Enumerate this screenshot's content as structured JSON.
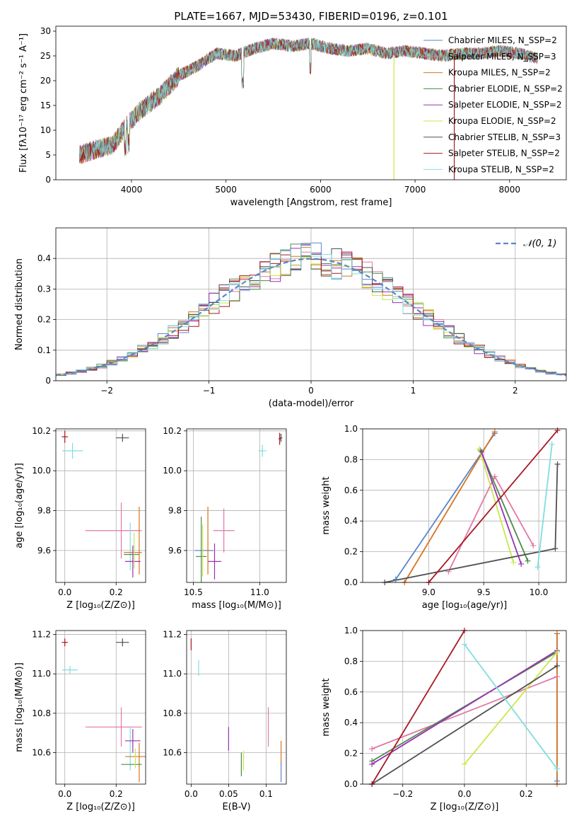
{
  "chart_data": [
    {
      "id": "spectrum",
      "type": "line",
      "title": "PLATE=1667, MJD=53430, FIBERID=0196, z=0.101",
      "xlabel": "wavelength [Angstrom, rest frame]",
      "ylabel": "Flux [fλ10⁻¹⁷ erg cm⁻² s⁻¹ A⁻¹]",
      "xlim": [
        3200,
        8600
      ],
      "ylim": [
        0,
        31
      ],
      "xticks": [
        4000,
        5000,
        6000,
        7000,
        8000
      ],
      "yticks": [
        0,
        5,
        10,
        15,
        20,
        25,
        30
      ],
      "grid": false,
      "legend_position": "top-right",
      "series": [
        {
          "name": "Chabrier MILES, N_SSP=2",
          "color": "#5b86c7"
        },
        {
          "name": "Salpeter MILES, N_SSP=3",
          "color": "#e377a5"
        },
        {
          "name": "Kroupa MILES, N_SSP=2",
          "color": "#d87420"
        },
        {
          "name": "Chabrier ELODIE, N_SSP=2",
          "color": "#4d8a4d"
        },
        {
          "name": "Salpeter ELODIE, N_SSP=2",
          "color": "#9a32b0"
        },
        {
          "name": "Kroupa ELODIE, N_SSP=2",
          "color": "#c8e84a"
        },
        {
          "name": "Chabrier STELIB, N_SSP=3",
          "color": "#505050"
        },
        {
          "name": "Salpeter STELIB, N_SSP=2",
          "color": "#a81820"
        },
        {
          "name": "Kroupa STELIB, N_SSP=2",
          "color": "#80dde0"
        }
      ],
      "continuum": [
        [
          3450,
          5
        ],
        [
          3600,
          6
        ],
        [
          3800,
          7
        ],
        [
          3950,
          11
        ],
        [
          4100,
          14
        ],
        [
          4300,
          17
        ],
        [
          4500,
          21
        ],
        [
          4700,
          23
        ],
        [
          4900,
          25.5
        ],
        [
          5100,
          25
        ],
        [
          5300,
          26.5
        ],
        [
          5500,
          27.5
        ],
        [
          5700,
          27
        ],
        [
          5900,
          27.5
        ],
        [
          6100,
          26.5
        ],
        [
          6300,
          26
        ],
        [
          6500,
          26.5
        ],
        [
          6700,
          25.5
        ],
        [
          6900,
          26
        ],
        [
          7100,
          25.5
        ],
        [
          7300,
          25
        ],
        [
          7500,
          25.5
        ],
        [
          7700,
          25.5
        ],
        [
          7900,
          26
        ],
        [
          8100,
          25.5
        ],
        [
          8300,
          24.5
        ]
      ]
    },
    {
      "id": "residuals",
      "type": "line",
      "xlabel": "(data-model)/error",
      "ylabel": "Normed distribution",
      "xlim": [
        -2.5,
        2.5
      ],
      "ylim": [
        0,
        0.5
      ],
      "xticks": [
        -2,
        -1,
        0,
        1,
        2
      ],
      "yticks": [
        0.0,
        0.1,
        0.2,
        0.3,
        0.4
      ],
      "grid": true,
      "legend_position": "top-right",
      "legend": "𝒩(0, 1)",
      "bin_width": 0.1,
      "series_colors": [
        "#5b86c7",
        "#e377a5",
        "#d87420",
        "#4d8a4d",
        "#9a32b0",
        "#c8e84a",
        "#505050",
        "#a81820",
        "#80dde0"
      ]
    },
    {
      "id": "age_vs_Z",
      "type": "scatter",
      "xlabel": "Z [log₁₀(Z/Z⊙)]",
      "ylabel": "age  [log₁₀(age/yr)]",
      "xlim": [
        -0.035,
        0.315
      ],
      "ylim": [
        9.44,
        10.21
      ],
      "xticks": [
        0.0,
        0.2
      ],
      "yticks": [
        9.6,
        9.8,
        10.0,
        10.2
      ],
      "points": [
        {
          "x": 0.0,
          "y": 10.17,
          "xerr": 0.012,
          "yerr": 0.03,
          "color": "#a81820"
        },
        {
          "x": 0.03,
          "y": 10.1,
          "xerr": 0.04,
          "yerr": 0.04,
          "color": "#80dde0"
        },
        {
          "x": 0.225,
          "y": 10.165,
          "xerr": 0.025,
          "yerr": 0.02,
          "color": "#505050"
        },
        {
          "x": 0.19,
          "y": 9.7,
          "xerr": 0.11,
          "yerr": 0.0,
          "color": "#e377a5"
        },
        {
          "x": 0.22,
          "y": 9.7,
          "xerr": 0.0,
          "yerr": 0.14,
          "color": "#e377a5"
        },
        {
          "x": 0.255,
          "y": 9.62,
          "xerr": 0.0,
          "yerr": 0.12,
          "color": "#80dde0"
        },
        {
          "x": 0.265,
          "y": 9.59,
          "xerr": 0.035,
          "yerr": 0.0,
          "color": "#d87420"
        },
        {
          "x": 0.29,
          "y": 9.65,
          "xerr": 0.0,
          "yerr": 0.17,
          "color": "#d87420"
        },
        {
          "x": 0.265,
          "y": 9.545,
          "xerr": 0.03,
          "yerr": 0.08,
          "color": "#9a32b0"
        },
        {
          "x": 0.26,
          "y": 9.58,
          "xerr": 0.03,
          "yerr": 0.0,
          "color": "#4d8a4d"
        },
        {
          "x": 0.27,
          "y": 9.6,
          "xerr": 0.0,
          "yerr": 0.09,
          "color": "#c8e84a"
        }
      ]
    },
    {
      "id": "age_vs_mass",
      "type": "scatter",
      "xlabel": "mass [log₁₀(M/M⊙)]",
      "ylabel": "",
      "xlim": [
        10.45,
        11.2
      ],
      "ylim": [
        9.44,
        10.21
      ],
      "xticks": [
        10.5,
        11.0
      ],
      "yticks": [
        9.6,
        9.8,
        10.0,
        10.2
      ],
      "points": [
        {
          "x": 11.15,
          "y": 10.16,
          "xerr": 0.01,
          "yerr": 0.03,
          "color": "#a81820"
        },
        {
          "x": 11.02,
          "y": 10.1,
          "xerr": 0.03,
          "yerr": 0.03,
          "color": "#80dde0"
        },
        {
          "x": 11.16,
          "y": 10.165,
          "xerr": 0.01,
          "yerr": 0.02,
          "color": "#505050"
        },
        {
          "x": 10.73,
          "y": 9.7,
          "xerr": 0.08,
          "yerr": 0.11,
          "color": "#e377a5"
        },
        {
          "x": 10.58,
          "y": 9.6,
          "xerr": 0.07,
          "yerr": 0.0,
          "color": "#5b86c7"
        },
        {
          "x": 10.61,
          "y": 9.65,
          "xerr": 0.0,
          "yerr": 0.17,
          "color": "#d87420"
        },
        {
          "x": 10.66,
          "y": 9.545,
          "xerr": 0.05,
          "yerr": 0.09,
          "color": "#9a32b0"
        },
        {
          "x": 10.56,
          "y": 9.57,
          "xerr": 0.04,
          "yerr": 0.2,
          "color": "#4d8a4d"
        },
        {
          "x": 10.57,
          "y": 9.6,
          "xerr": 0.0,
          "yerr": 0.13,
          "color": "#c8e84a"
        }
      ]
    },
    {
      "id": "weight_vs_age",
      "type": "line",
      "xlabel": "age  [log₁₀(age/yr)]",
      "ylabel": "mass weight",
      "xlim": [
        8.4,
        10.25
      ],
      "ylim": [
        0.0,
        1.0
      ],
      "xticks": [
        9.0,
        9.5,
        10.0
      ],
      "yticks": [
        0.0,
        0.2,
        0.4,
        0.6,
        0.8,
        1.0
      ],
      "grid": true,
      "series": [
        {
          "color": "#5b86c7",
          "points": [
            [
              8.7,
              0.02
            ],
            [
              9.6,
              0.97
            ]
          ]
        },
        {
          "color": "#e377a5",
          "points": [
            [
              9.18,
              0.07
            ],
            [
              9.6,
              0.69
            ],
            [
              9.95,
              0.24
            ]
          ]
        },
        {
          "color": "#d87420",
          "points": [
            [
              8.78,
              0.0
            ],
            [
              9.6,
              0.98
            ]
          ]
        },
        {
          "color": "#4d8a4d",
          "points": [
            [
              9.47,
              0.86
            ],
            [
              9.9,
              0.14
            ]
          ]
        },
        {
          "color": "#9a32b0",
          "points": [
            [
              9.48,
              0.85
            ],
            [
              9.84,
              0.12
            ]
          ]
        },
        {
          "color": "#c8e84a",
          "points": [
            [
              9.46,
              0.87
            ],
            [
              9.77,
              0.13
            ]
          ]
        },
        {
          "color": "#505050",
          "points": [
            [
              8.6,
              0.0
            ],
            [
              10.15,
              0.22
            ],
            [
              10.17,
              0.77
            ]
          ]
        },
        {
          "color": "#a81820",
          "points": [
            [
              9.0,
              0.0
            ],
            [
              10.17,
              0.99
            ]
          ]
        },
        {
          "color": "#80dde0",
          "points": [
            [
              9.99,
              0.1
            ],
            [
              10.12,
              0.9
            ]
          ]
        }
      ]
    },
    {
      "id": "mass_vs_Z",
      "type": "scatter",
      "xlabel": "Z [log₁₀(Z/Z⊙)]",
      "ylabel": "mass [log₁₀(M/M⊙)]",
      "xlim": [
        -0.035,
        0.315
      ],
      "ylim": [
        10.44,
        11.22
      ],
      "xticks": [
        0.0,
        0.2
      ],
      "yticks": [
        10.6,
        10.8,
        11.0,
        11.2
      ],
      "points": [
        {
          "x": 0.0,
          "y": 11.16,
          "xerr": 0.012,
          "yerr": 0.02,
          "color": "#a81820"
        },
        {
          "x": 0.02,
          "y": 11.02,
          "xerr": 0.03,
          "yerr": 0.02,
          "color": "#80dde0"
        },
        {
          "x": 0.225,
          "y": 11.16,
          "xerr": 0.025,
          "yerr": 0.02,
          "color": "#505050"
        },
        {
          "x": 0.19,
          "y": 10.73,
          "xerr": 0.11,
          "yerr": 0.0,
          "color": "#e377a5"
        },
        {
          "x": 0.22,
          "y": 10.73,
          "xerr": 0.0,
          "yerr": 0.1,
          "color": "#e377a5"
        },
        {
          "x": 0.255,
          "y": 10.62,
          "xerr": 0.0,
          "yerr": 0.11,
          "color": "#80dde0"
        },
        {
          "x": 0.275,
          "y": 10.58,
          "xerr": 0.04,
          "yerr": 0.0,
          "color": "#d87420"
        },
        {
          "x": 0.29,
          "y": 10.55,
          "xerr": 0.0,
          "yerr": 0.1,
          "color": "#d87420"
        },
        {
          "x": 0.265,
          "y": 10.66,
          "xerr": 0.03,
          "yerr": 0.06,
          "color": "#9a32b0"
        },
        {
          "x": 0.26,
          "y": 10.54,
          "xerr": 0.04,
          "yerr": 0.0,
          "color": "#4d8a4d"
        },
        {
          "x": 0.275,
          "y": 10.57,
          "xerr": 0.0,
          "yerr": 0.05,
          "color": "#c8e84a"
        }
      ]
    },
    {
      "id": "mass_vs_ebv",
      "type": "scatter",
      "xlabel": "E(B-V)",
      "ylabel": "",
      "xlim": [
        -0.006,
        0.127
      ],
      "ylim": [
        10.44,
        11.22
      ],
      "xticks": [
        0.0,
        0.05,
        0.1
      ],
      "yticks": [
        10.6,
        10.8,
        11.0,
        11.2
      ],
      "points": [
        {
          "x": 0.0,
          "y": 11.15,
          "xerr": 0.0,
          "yerr": 0.03,
          "color": "#a81820"
        },
        {
          "x": 0.01,
          "y": 11.03,
          "xerr": 0.0,
          "yerr": 0.04,
          "color": "#80dde0"
        },
        {
          "x": 0.05,
          "y": 10.67,
          "xerr": 0.0,
          "yerr": 0.06,
          "color": "#9a32b0"
        },
        {
          "x": 0.067,
          "y": 10.54,
          "xerr": 0.0,
          "yerr": 0.06,
          "color": "#4d8a4d"
        },
        {
          "x": 0.07,
          "y": 10.56,
          "xerr": 0.0,
          "yerr": 0.05,
          "color": "#c8e84a"
        },
        {
          "x": 0.103,
          "y": 10.73,
          "xerr": 0.0,
          "yerr": 0.1,
          "color": "#e377a5"
        },
        {
          "x": 0.12,
          "y": 10.6,
          "xerr": 0.0,
          "yerr": 0.06,
          "color": "#d87420"
        },
        {
          "x": 0.12,
          "y": 10.5,
          "xerr": 0.0,
          "yerr": 0.05,
          "color": "#5b86c7"
        }
      ]
    },
    {
      "id": "weight_vs_Z",
      "type": "line",
      "xlabel": "Z [log₁₀(Z/Z⊙)]",
      "ylabel": "mass weight",
      "xlim": [
        -0.33,
        0.33
      ],
      "ylim": [
        0.0,
        1.0
      ],
      "xticks": [
        -0.2,
        0.0,
        0.2
      ],
      "yticks": [
        0.0,
        0.2,
        0.4,
        0.6,
        0.8,
        1.0
      ],
      "grid": true,
      "series": [
        {
          "color": "#5b86c7",
          "points": [
            [
              0.3,
              0.02
            ],
            [
              0.3,
              0.98
            ]
          ]
        },
        {
          "color": "#e377a5",
          "points": [
            [
              -0.3,
              0.23
            ],
            [
              0.3,
              0.7
            ]
          ]
        },
        {
          "color": "#d87420",
          "points": [
            [
              0.3,
              0.0
            ],
            [
              0.3,
              0.98
            ]
          ]
        },
        {
          "color": "#4d8a4d",
          "points": [
            [
              -0.3,
              0.15
            ],
            [
              0.3,
              0.86
            ]
          ]
        },
        {
          "color": "#9a32b0",
          "points": [
            [
              -0.3,
              0.13
            ],
            [
              0.3,
              0.87
            ]
          ]
        },
        {
          "color": "#c8e84a",
          "points": [
            [
              0.0,
              0.13
            ],
            [
              0.3,
              0.86
            ]
          ]
        },
        {
          "color": "#505050",
          "points": [
            [
              -0.3,
              0.0
            ],
            [
              0.3,
              0.77
            ]
          ]
        },
        {
          "color": "#a81820",
          "points": [
            [
              -0.3,
              0.0
            ],
            [
              0.0,
              1.0
            ]
          ]
        },
        {
          "color": "#80dde0",
          "points": [
            [
              0.0,
              0.91
            ],
            [
              0.3,
              0.1
            ]
          ]
        }
      ]
    }
  ]
}
